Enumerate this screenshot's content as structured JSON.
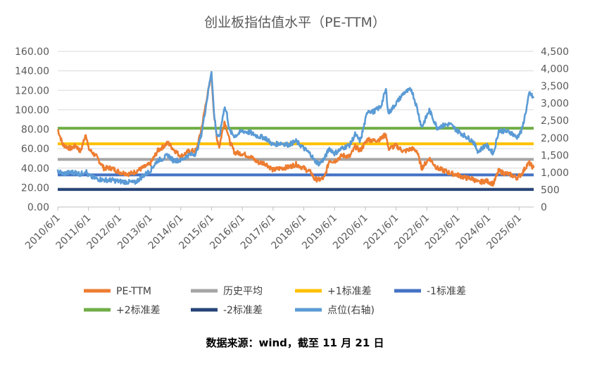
{
  "chart_data": {
    "type": "line",
    "title": "创业板指估值水平（PE-TTM）",
    "xlabel": "",
    "ylabel": "",
    "left_axis": {
      "ylim": [
        0,
        160
      ],
      "ticks": [
        0,
        20,
        40,
        60,
        80,
        100,
        120,
        140,
        160
      ],
      "tick_labels": [
        "0.00",
        "20.00",
        "40.00",
        "60.00",
        "80.00",
        "100.00",
        "120.00",
        "140.00",
        "160.00"
      ]
    },
    "right_axis": {
      "ylim": [
        0,
        4500
      ],
      "ticks": [
        0,
        500,
        1000,
        1500,
        2000,
        2500,
        3000,
        3500,
        4000,
        4500
      ],
      "tick_labels": [
        "0",
        "500",
        "1,000",
        "1,500",
        "2,000",
        "2,500",
        "3,000",
        "3,500",
        "4,000",
        "4,500"
      ]
    },
    "x_axis": {
      "range": [
        "2010-06-01",
        "2025-11-21"
      ],
      "tick_dates": [
        "2010-06-01",
        "2011-06-01",
        "2012-06-01",
        "2013-06-01",
        "2014-06-01",
        "2015-06-01",
        "2016-06-01",
        "2017-06-01",
        "2018-06-01",
        "2019-06-01",
        "2020-06-01",
        "2021-06-01",
        "2022-06-01",
        "2023-06-01",
        "2024-06-01",
        "2025-06-01"
      ],
      "tick_labels": [
        "2010/6/1",
        "2011/6/1",
        "2012/6/1",
        "2013/6/1",
        "2014/6/1",
        "2015/6/1",
        "2016/6/1",
        "2017/6/1",
        "2018/6/1",
        "2019/6/1",
        "2020/6/1",
        "2021/6/1",
        "2022/6/1",
        "2023/6/1",
        "2024/6/1",
        "2025/6/1"
      ]
    },
    "grid": true,
    "legend": {
      "position": "bottom"
    },
    "series": [
      {
        "name": "PE-TTM",
        "axis": "left",
        "color": "#ED7D31",
        "kind": "line",
        "points": [
          [
            "2010-06-01",
            80
          ],
          [
            "2010-08-01",
            64
          ],
          [
            "2010-11-01",
            60
          ],
          [
            "2011-01-01",
            63
          ],
          [
            "2011-03-01",
            57
          ],
          [
            "2011-05-01",
            76
          ],
          [
            "2011-06-01",
            60
          ],
          [
            "2011-09-01",
            52
          ],
          [
            "2011-12-01",
            40
          ],
          [
            "2012-03-01",
            40
          ],
          [
            "2012-06-01",
            36
          ],
          [
            "2012-10-01",
            34
          ],
          [
            "2012-12-01",
            36
          ],
          [
            "2013-03-01",
            40
          ],
          [
            "2013-06-01",
            44
          ],
          [
            "2013-09-01",
            58
          ],
          [
            "2013-11-01",
            62
          ],
          [
            "2014-01-01",
            66
          ],
          [
            "2014-03-01",
            60
          ],
          [
            "2014-06-01",
            52
          ],
          [
            "2014-09-01",
            57
          ],
          [
            "2014-12-01",
            58
          ],
          [
            "2015-02-01",
            80
          ],
          [
            "2015-04-01",
            110
          ],
          [
            "2015-06-01",
            135
          ],
          [
            "2015-07-01",
            95
          ],
          [
            "2015-08-01",
            72
          ],
          [
            "2015-09-01",
            62
          ],
          [
            "2015-11-01",
            88
          ],
          [
            "2015-12-01",
            80
          ],
          [
            "2016-01-01",
            68
          ],
          [
            "2016-03-01",
            56
          ],
          [
            "2016-06-01",
            55
          ],
          [
            "2016-09-01",
            52
          ],
          [
            "2016-12-01",
            46
          ],
          [
            "2017-03-01",
            45
          ],
          [
            "2017-06-01",
            38
          ],
          [
            "2017-09-01",
            40
          ],
          [
            "2017-12-01",
            41
          ],
          [
            "2018-03-01",
            44
          ],
          [
            "2018-06-01",
            40
          ],
          [
            "2018-09-01",
            35
          ],
          [
            "2018-10-01",
            29
          ],
          [
            "2018-12-01",
            28
          ],
          [
            "2019-02-01",
            30
          ],
          [
            "2019-04-01",
            48
          ],
          [
            "2019-06-01",
            47
          ],
          [
            "2019-09-01",
            53
          ],
          [
            "2019-12-01",
            52
          ],
          [
            "2020-02-01",
            62
          ],
          [
            "2020-04-01",
            58
          ],
          [
            "2020-07-01",
            70
          ],
          [
            "2020-09-01",
            68
          ],
          [
            "2020-12-01",
            70
          ],
          [
            "2021-02-01",
            75
          ],
          [
            "2021-03-01",
            60
          ],
          [
            "2021-06-01",
            63
          ],
          [
            "2021-09-01",
            57
          ],
          [
            "2021-12-01",
            60
          ],
          [
            "2022-02-01",
            58
          ],
          [
            "2022-04-01",
            40
          ],
          [
            "2022-07-01",
            50
          ],
          [
            "2022-10-01",
            40
          ],
          [
            "2022-12-01",
            38
          ],
          [
            "2023-03-01",
            35
          ],
          [
            "2023-06-01",
            33
          ],
          [
            "2023-09-01",
            30
          ],
          [
            "2023-12-01",
            29
          ],
          [
            "2024-02-01",
            25
          ],
          [
            "2024-05-01",
            27
          ],
          [
            "2024-08-01",
            24
          ],
          [
            "2024-10-01",
            37
          ],
          [
            "2024-12-01",
            35
          ],
          [
            "2025-03-01",
            33
          ],
          [
            "2025-05-01",
            30
          ],
          [
            "2025-07-01",
            34
          ],
          [
            "2025-09-01",
            43
          ],
          [
            "2025-10-01",
            45
          ],
          [
            "2025-11-21",
            40
          ]
        ]
      },
      {
        "name": "历史平均",
        "axis": "left",
        "color": "#A5A5A5",
        "kind": "hline",
        "value": 49
      },
      {
        "name": "+1标准差",
        "axis": "left",
        "color": "#FFC000",
        "kind": "hline",
        "value": 65
      },
      {
        "name": "-1标准差",
        "axis": "left",
        "color": "#4472C4",
        "kind": "hline",
        "value": 33
      },
      {
        "name": "+2标准差",
        "axis": "left",
        "color": "#70AD47",
        "kind": "hline",
        "value": 81
      },
      {
        "name": "-2标准差",
        "axis": "left",
        "color": "#264478",
        "kind": "hline",
        "value": 18
      },
      {
        "name": "点位(右轴)",
        "axis": "right",
        "color": "#5B9BD5",
        "kind": "line",
        "points": [
          [
            "2010-06-01",
            1050
          ],
          [
            "2010-08-01",
            960
          ],
          [
            "2010-11-01",
            1000
          ],
          [
            "2011-01-01",
            1000
          ],
          [
            "2011-03-01",
            950
          ],
          [
            "2011-05-01",
            1050
          ],
          [
            "2011-06-01",
            900
          ],
          [
            "2011-09-01",
            820
          ],
          [
            "2011-12-01",
            780
          ],
          [
            "2012-03-01",
            780
          ],
          [
            "2012-06-01",
            740
          ],
          [
            "2012-10-01",
            720
          ],
          [
            "2012-12-01",
            700
          ],
          [
            "2013-03-01",
            880
          ],
          [
            "2013-06-01",
            1050
          ],
          [
            "2013-09-01",
            1350
          ],
          [
            "2013-11-01",
            1400
          ],
          [
            "2014-01-01",
            1500
          ],
          [
            "2014-03-01",
            1350
          ],
          [
            "2014-06-01",
            1350
          ],
          [
            "2014-09-01",
            1500
          ],
          [
            "2014-12-01",
            1550
          ],
          [
            "2015-02-01",
            2100
          ],
          [
            "2015-04-01",
            3000
          ],
          [
            "2015-06-01",
            3950
          ],
          [
            "2015-07-01",
            2700
          ],
          [
            "2015-08-01",
            2100
          ],
          [
            "2015-09-01",
            2000
          ],
          [
            "2015-11-01",
            2900
          ],
          [
            "2015-12-01",
            2700
          ],
          [
            "2016-01-01",
            2200
          ],
          [
            "2016-03-01",
            2050
          ],
          [
            "2016-06-01",
            2200
          ],
          [
            "2016-09-01",
            2150
          ],
          [
            "2016-12-01",
            2050
          ],
          [
            "2017-03-01",
            2000
          ],
          [
            "2017-06-01",
            1800
          ],
          [
            "2017-09-01",
            1850
          ],
          [
            "2017-12-01",
            1800
          ],
          [
            "2018-03-01",
            1900
          ],
          [
            "2018-06-01",
            1700
          ],
          [
            "2018-09-01",
            1500
          ],
          [
            "2018-10-01",
            1350
          ],
          [
            "2018-12-01",
            1250
          ],
          [
            "2019-02-01",
            1400
          ],
          [
            "2019-04-01",
            1700
          ],
          [
            "2019-06-01",
            1550
          ],
          [
            "2019-09-01",
            1700
          ],
          [
            "2019-12-01",
            1800
          ],
          [
            "2020-02-01",
            2100
          ],
          [
            "2020-04-01",
            1900
          ],
          [
            "2020-07-01",
            2800
          ],
          [
            "2020-09-01",
            2750
          ],
          [
            "2020-12-01",
            2900
          ],
          [
            "2021-02-01",
            3400
          ],
          [
            "2021-03-01",
            2700
          ],
          [
            "2021-06-01",
            3000
          ],
          [
            "2021-09-01",
            3300
          ],
          [
            "2021-12-01",
            3400
          ],
          [
            "2022-02-01",
            2900
          ],
          [
            "2022-04-01",
            2300
          ],
          [
            "2022-07-01",
            2800
          ],
          [
            "2022-10-01",
            2300
          ],
          [
            "2022-12-01",
            2350
          ],
          [
            "2023-03-01",
            2400
          ],
          [
            "2023-06-01",
            2200
          ],
          [
            "2023-09-01",
            2050
          ],
          [
            "2023-12-01",
            1900
          ],
          [
            "2024-02-01",
            1600
          ],
          [
            "2024-05-01",
            1800
          ],
          [
            "2024-08-01",
            1550
          ],
          [
            "2024-10-01",
            2200
          ],
          [
            "2024-12-01",
            2200
          ],
          [
            "2025-03-01",
            2150
          ],
          [
            "2025-05-01",
            2000
          ],
          [
            "2025-07-01",
            2200
          ],
          [
            "2025-09-01",
            2900
          ],
          [
            "2025-10-01",
            3300
          ],
          [
            "2025-11-21",
            3150
          ]
        ]
      }
    ]
  },
  "source_note": "数据来源：wind，截至 11 月 21 日"
}
